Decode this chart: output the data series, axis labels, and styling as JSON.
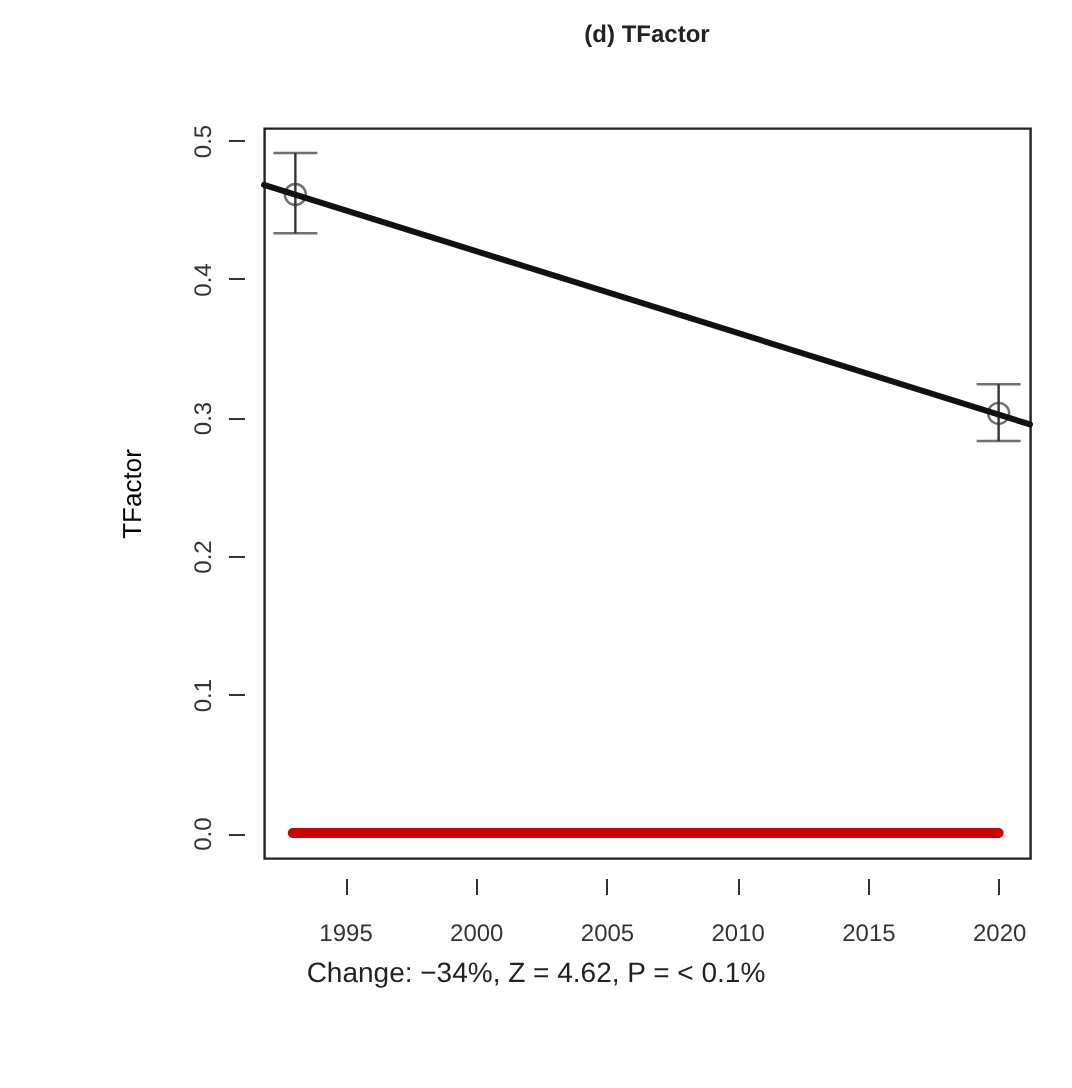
{
  "chart_data": {
    "type": "scatter",
    "title": "(d) TFactor",
    "ylabel": "TFactor",
    "annotations": [
      "Change: −34%, Z = 4.62, P = < 0.1%"
    ],
    "xlim": [
      1991.9,
      2021.2
    ],
    "xticks": [
      1995,
      2000,
      2005,
      2010,
      2015,
      2020
    ],
    "ylim": [
      -0.018,
      0.509
    ],
    "yticks": [
      {
        "value": 0,
        "label": "0.0"
      },
      0.1,
      0.2,
      0.3,
      0.4,
      0.5
    ],
    "series": [
      {
        "color": "#333333",
        "marker": "circle",
        "x": [
          1993.1,
          2020
        ],
        "values": [
          0.461,
          0.303
        ],
        "errors": [
          [
            0.433,
            0.491
          ],
          [
            0.283,
            0.324
          ]
        ]
      },
      {
        "type": "line",
        "color": "#111111",
        "x": [
          1991.9,
          2021.2
        ],
        "values": [
          0.468,
          0.295
        ],
        "line_style": "solid"
      },
      {
        "type": "line",
        "color": "#cc0000",
        "x": [
          1993,
          2020
        ],
        "values": [
          0,
          0
        ],
        "line_style": "solid"
      }
    ]
  }
}
